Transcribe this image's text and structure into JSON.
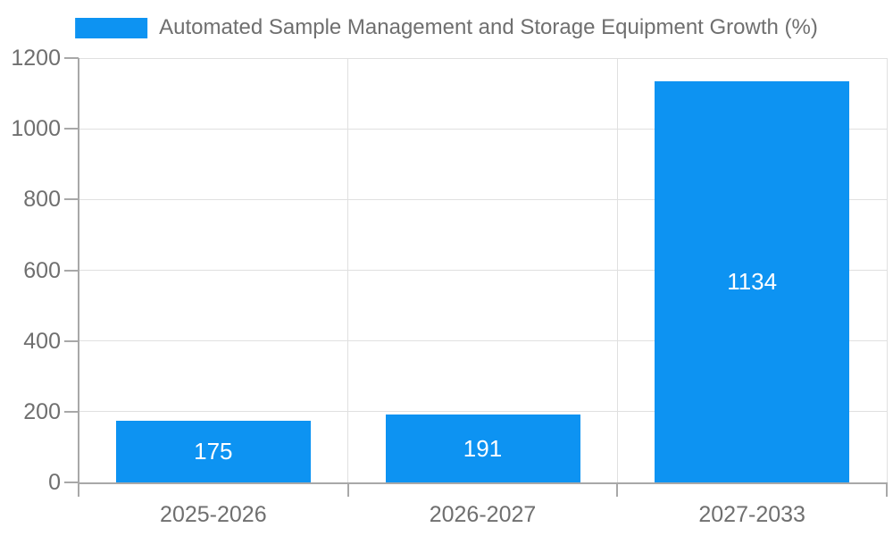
{
  "chart_data": {
    "type": "bar",
    "title": "Automated Sample Management and Storage Equipment Growth (%)",
    "categories": [
      "2025-2026",
      "2026-2027",
      "2027-2033"
    ],
    "values": [
      175,
      191,
      1134
    ],
    "bar_value_labels": [
      "175",
      "191",
      "1134"
    ],
    "xlabel": "",
    "ylabel": "",
    "ylim": [
      0,
      1200
    ],
    "yticks": [
      0,
      200,
      400,
      600,
      800,
      1000,
      1200
    ],
    "grid": true,
    "legend_position": "top-center",
    "bar_color": "#0d93f2",
    "bar_label_color": "#ffffff"
  },
  "colors": {
    "background": "#ffffff",
    "bar": "#0d93f2",
    "grid_line": "#e0e0e0",
    "axis_line": "#a8a8a8",
    "text": "#6f6f6f",
    "bar_label": "#ffffff"
  }
}
